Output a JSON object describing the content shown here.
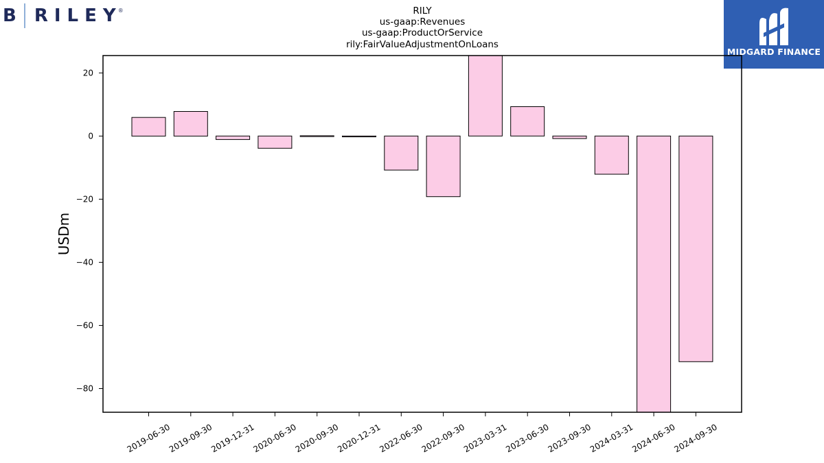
{
  "logos": {
    "left": {
      "mark": "B",
      "name": "RILEY",
      "reg": "®"
    },
    "right": {
      "name": "MIDGARD FINANCE",
      "icon": "midgard-m-icon",
      "bg_color": "#2f5fb3"
    }
  },
  "chart_data": {
    "type": "bar",
    "title_lines": [
      "RILY",
      "us-gaap:Revenues",
      "us-gaap:ProductOrService",
      "rily:FairValueAdjustmentOnLoans"
    ],
    "xlabel": "",
    "ylabel": "USDm",
    "categories": [
      "2019-06-30",
      "2019-09-30",
      "2019-12-31",
      "2020-06-30",
      "2020-09-30",
      "2020-12-31",
      "2022-06-30",
      "2022-09-30",
      "2023-03-31",
      "2023-06-30",
      "2023-09-30",
      "2024-03-31",
      "2024-06-30",
      "2024-09-30"
    ],
    "values": [
      5.9,
      7.8,
      -1.1,
      -3.9,
      0.1,
      -0.2,
      -10.8,
      -19.2,
      26.5,
      9.3,
      -0.8,
      -12.1,
      -88.0,
      -71.5
    ],
    "ylim": [
      -87.5,
      25.5
    ],
    "yticks": [
      20,
      0,
      -20,
      -40,
      -60,
      -80
    ],
    "bar_color": "#fccce6",
    "edge_color": "#000000",
    "grid": false
  }
}
